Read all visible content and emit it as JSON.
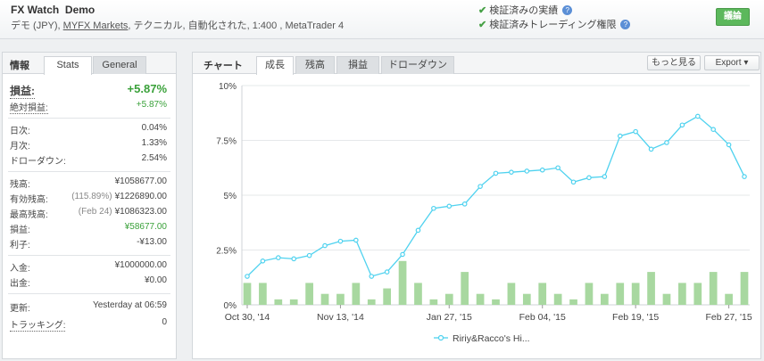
{
  "account": {
    "name": "FX Watch",
    "type": "Demo",
    "desc_before": "デモ (JPY), ",
    "broker": "MYFX Markets",
    "desc_after": ", テクニカル, 自動化された, 1:400 , MetaTrader 4"
  },
  "verification": {
    "track_record": "検証済みの実績",
    "trading_privileges": "検証済みトレーディング権限",
    "help": "?"
  },
  "discuss_button": "議論",
  "left_tabs": {
    "title": "情報",
    "stats": "Stats",
    "general": "General"
  },
  "stats": {
    "gain_label": "損益:",
    "gain_value": "+5.87%",
    "abs_gain_label": "絶対損益:",
    "abs_gain_value": "+5.87%",
    "daily_label": "日次:",
    "daily_value": "0.04%",
    "monthly_label": "月次:",
    "monthly_value": "1.33%",
    "drawdown_label": "ドローダウン:",
    "drawdown_value": "2.54%",
    "balance_label": "残高:",
    "balance_value": "¥1058677.00",
    "equity_label": "有効残高:",
    "equity_pct": "(115.89%)",
    "equity_value": "¥1226890.00",
    "highest_label": "最高残高:",
    "highest_date": "(Feb 24)",
    "highest_value": "¥1086323.00",
    "profit_label": "損益:",
    "profit_value": "¥58677.00",
    "interest_label": "利子:",
    "interest_value": "-¥13.00",
    "deposits_label": "入金:",
    "deposits_value": "¥1000000.00",
    "withdrawals_label": "出金:",
    "withdrawals_value": "¥0.00",
    "updated_label": "更新:",
    "updated_value": "Yesterday at 06:59",
    "tracking_label": "トラッキング:",
    "tracking_value": "0"
  },
  "chart_tabs": {
    "title": "チャート",
    "growth": "成長",
    "balance": "残高",
    "profit": "損益",
    "drawdown": "ドローダウン",
    "more": "もっと見る",
    "export": "Export"
  },
  "colors": {
    "line": "#4fd2ef",
    "bars": "#a8d8a0",
    "green_text": "#3aa13a"
  },
  "chart_data": {
    "type": "line",
    "ylim": [
      0,
      10
    ],
    "y_ticks": [
      "0%",
      "2.5%",
      "5%",
      "7.5%",
      "10%"
    ],
    "x_tick_labels": [
      "Oct 30, '14",
      "Nov 13, '14",
      "Jan 27, '15",
      "Feb 04, '15",
      "Feb 19, '15",
      "Feb 27, '15"
    ],
    "x_tick_index": [
      0,
      6,
      13,
      19,
      25,
      31
    ],
    "series": [
      {
        "name": "Ririy&Racco's Hi...",
        "values": [
          1.3,
          2.0,
          2.15,
          2.1,
          2.25,
          2.7,
          2.9,
          2.95,
          1.3,
          1.5,
          2.3,
          3.4,
          4.4,
          4.5,
          4.6,
          5.4,
          6.0,
          6.05,
          6.1,
          6.15,
          6.25,
          5.6,
          5.8,
          5.85,
          7.7,
          7.9,
          7.1,
          7.4,
          8.2,
          8.6,
          8.0,
          7.3,
          5.85
        ]
      },
      {
        "values": [
          1.0,
          1.0,
          0.25,
          0.25,
          1.0,
          0.5,
          0.5,
          1.0,
          0.25,
          0.75,
          2.0,
          1.0,
          0.25,
          0.5,
          1.5,
          0.5,
          0.25,
          1.0,
          0.5,
          1.0,
          0.5,
          0.25,
          1.0,
          0.5,
          1.0,
          1.0,
          1.5,
          0.5,
          1.0,
          1.0,
          1.5,
          0.5,
          1.5
        ]
      }
    ]
  }
}
